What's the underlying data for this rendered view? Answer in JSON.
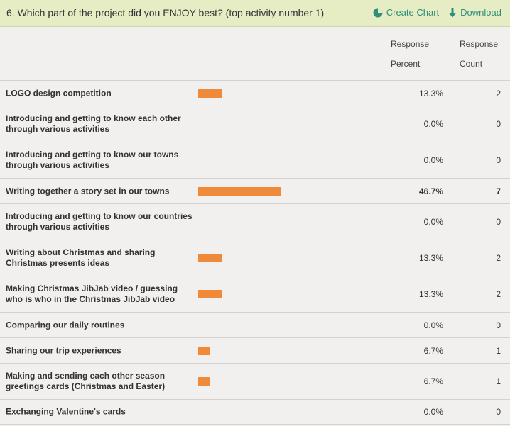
{
  "question": {
    "title": "6. Which part of the project did you ENJOY best? (top activity number 1)"
  },
  "actions": {
    "create_chart": "Create Chart",
    "download": "Download"
  },
  "columns": {
    "percent_line1": "Response",
    "percent_line2": "Percent",
    "count_line1": "Response",
    "count_line2": "Count"
  },
  "colors": {
    "bar": "#ee8a3a",
    "accent": "#2f8f7a",
    "header_bg": "#e6edc4"
  },
  "rows": [
    {
      "label": "LOGO design competition",
      "percent": "13.3%",
      "count": "2",
      "value": 13.3
    },
    {
      "label": "Introducing and getting to know each other through various activities",
      "percent": "0.0%",
      "count": "0",
      "value": 0
    },
    {
      "label": "Introducing and getting to know our towns through various activities",
      "percent": "0.0%",
      "count": "0",
      "value": 0
    },
    {
      "label": "Writing together a story set in our towns",
      "percent": "46.7%",
      "count": "7",
      "value": 46.7,
      "top": true
    },
    {
      "label": "Introducing and getting to know our countries through various activities",
      "percent": "0.0%",
      "count": "0",
      "value": 0
    },
    {
      "label": "Writing about Christmas and sharing Christmas presents ideas",
      "percent": "13.3%",
      "count": "2",
      "value": 13.3
    },
    {
      "label": "Making Christmas JibJab video / guessing who is who in the Christmas JibJab video",
      "percent": "13.3%",
      "count": "2",
      "value": 13.3
    },
    {
      "label": "Comparing our daily routines",
      "percent": "0.0%",
      "count": "0",
      "value": 0
    },
    {
      "label": "Sharing our trip experiences",
      "percent": "6.7%",
      "count": "1",
      "value": 6.7
    },
    {
      "label": "Making and sending each other season greetings cards (Christmas and Easter)",
      "percent": "6.7%",
      "count": "1",
      "value": 6.7
    },
    {
      "label": "Exchanging Valentine's cards",
      "percent": "0.0%",
      "count": "0",
      "value": 0
    }
  ]
}
